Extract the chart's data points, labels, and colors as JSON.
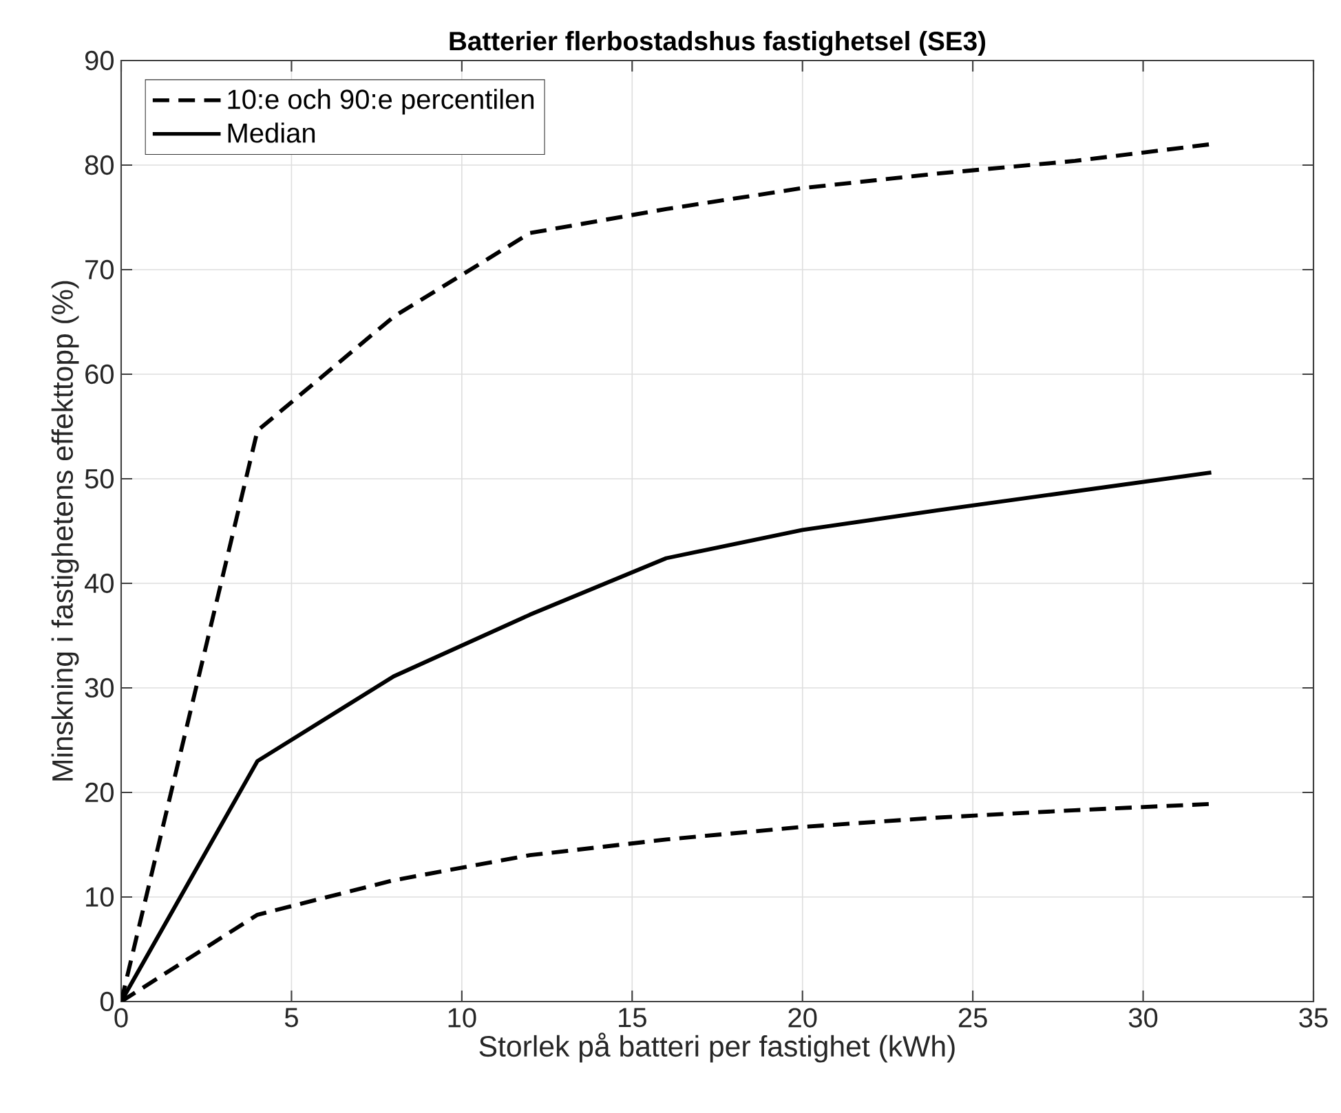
{
  "chart_data": {
    "type": "line",
    "title": "Batterier flerbostadshus fastighetsel (SE3)",
    "xlabel": "Storlek på batteri per fastighet (kWh)",
    "ylabel": "Minskning i fastighetens effekttopp (%)",
    "x": [
      0,
      4,
      8,
      12,
      16,
      20,
      24,
      28,
      32
    ],
    "xlim": [
      0,
      35
    ],
    "ylim": [
      0,
      90
    ],
    "xticks": [
      0,
      5,
      10,
      15,
      20,
      25,
      30,
      35
    ],
    "yticks": [
      0,
      10,
      20,
      30,
      40,
      50,
      60,
      70,
      80,
      90
    ],
    "grid": true,
    "legend": "top left",
    "series": [
      {
        "name": "10:e och 90:e percentilen",
        "color": "#000000",
        "line_style": "dashed",
        "values": [
          0,
          54.6,
          65.5,
          73.5,
          75.8,
          77.8,
          79.2,
          80.4,
          82.0
        ]
      },
      {
        "color": "#000000",
        "line_style": "dashed",
        "values": [
          0,
          8.3,
          11.6,
          14.0,
          15.5,
          16.7,
          17.6,
          18.3,
          18.9
        ]
      },
      {
        "name": "Median",
        "color": "#000000",
        "line_style": "solid",
        "values": [
          0,
          23.0,
          31.1,
          37.0,
          42.4,
          45.1,
          47.0,
          48.8,
          50.6
        ]
      }
    ]
  }
}
